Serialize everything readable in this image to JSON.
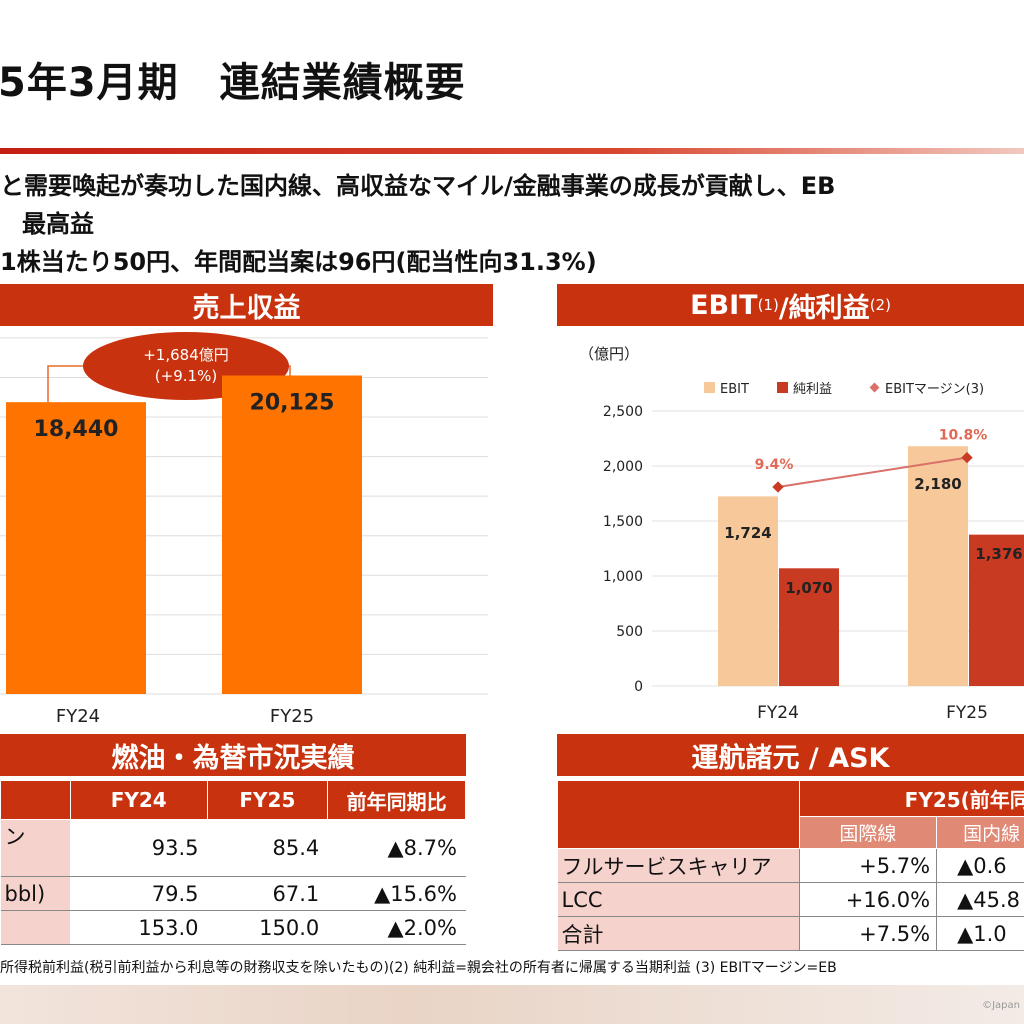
{
  "title": "5年3月期　連結業績概要",
  "bullets": [
    "と需要喚起が奏功した国内線、高収益なマイル/金融事業の成長が貢献し、EB",
    "最高益",
    "1株当たり50円、年間配当案は96円(配当性向31.3%)"
  ],
  "revenue": {
    "header": "売上収益",
    "callout_line1": "+1,684億円",
    "callout_line2": "(+9.1%)",
    "chart_data": {
      "type": "bar",
      "categories": [
        "FY24",
        "FY25"
      ],
      "values": [
        18440,
        20125
      ],
      "value_labels": [
        "18,440",
        "20,125"
      ],
      "color": "#ff7300",
      "title": "売上収益"
    }
  },
  "ebit": {
    "header_main": "EBIT",
    "header_sup1": "(1)",
    "header_mid": "/純利益",
    "header_sup2": "(2)",
    "unit": "（億円）",
    "chart_data": {
      "type": "bar",
      "categories": [
        "FY24",
        "FY25"
      ],
      "ylim": [
        0,
        2500
      ],
      "yticks": [
        "2,500",
        "2,000",
        "1,500",
        "1,000",
        "500",
        "0"
      ],
      "series": [
        {
          "name": "EBIT",
          "values": [
            1724,
            2180
          ],
          "labels": [
            "1,724",
            "2,180"
          ],
          "color": "#f7c99a"
        },
        {
          "name": "純利益",
          "values": [
            1070,
            1376
          ],
          "labels": [
            "1,070",
            "1,376"
          ],
          "color": "#c93a22"
        },
        {
          "name": "EBITマージン(3)",
          "type": "line",
          "values": [
            9.4,
            10.8
          ],
          "labels": [
            "9.4%",
            "10.8%"
          ],
          "color": "#d9706a"
        }
      ]
    }
  },
  "fuel": {
    "header": "燃油・為替市況実績",
    "columns": [
      "",
      "FY24",
      "FY25",
      "前年同期比"
    ],
    "rows": [
      {
        "label": "ン",
        "fy24": "93.5",
        "fy25": "85.4",
        "yoy": "▲8.7%"
      },
      {
        "label": "bbl)",
        "fy24": "79.5",
        "fy25": "67.1",
        "yoy": "▲15.6%"
      },
      {
        "label": "",
        "fy24": "153.0",
        "fy25": "150.0",
        "yoy": "▲2.0%"
      }
    ]
  },
  "ask": {
    "header": "運航諸元 / ASK",
    "group_header": "FY25(前年同",
    "subcolumns": [
      "国際線",
      "国内線"
    ],
    "rows": [
      {
        "label": "フルサービスキャリア",
        "intl": "+5.7%",
        "dom": "▲0.6"
      },
      {
        "label": "LCC",
        "intl": "+16.0%",
        "dom": "▲45.8"
      },
      {
        "label": "合計",
        "intl": "+7.5%",
        "dom": "▲1.0"
      }
    ]
  },
  "footnote": "所得税前利益(税引前利益から利息等の財務収支を除いたもの)(2) 純利益=親会社の所有者に帰属する当期利益 (3) EBITマージン=EB",
  "copyright": "©Japan"
}
